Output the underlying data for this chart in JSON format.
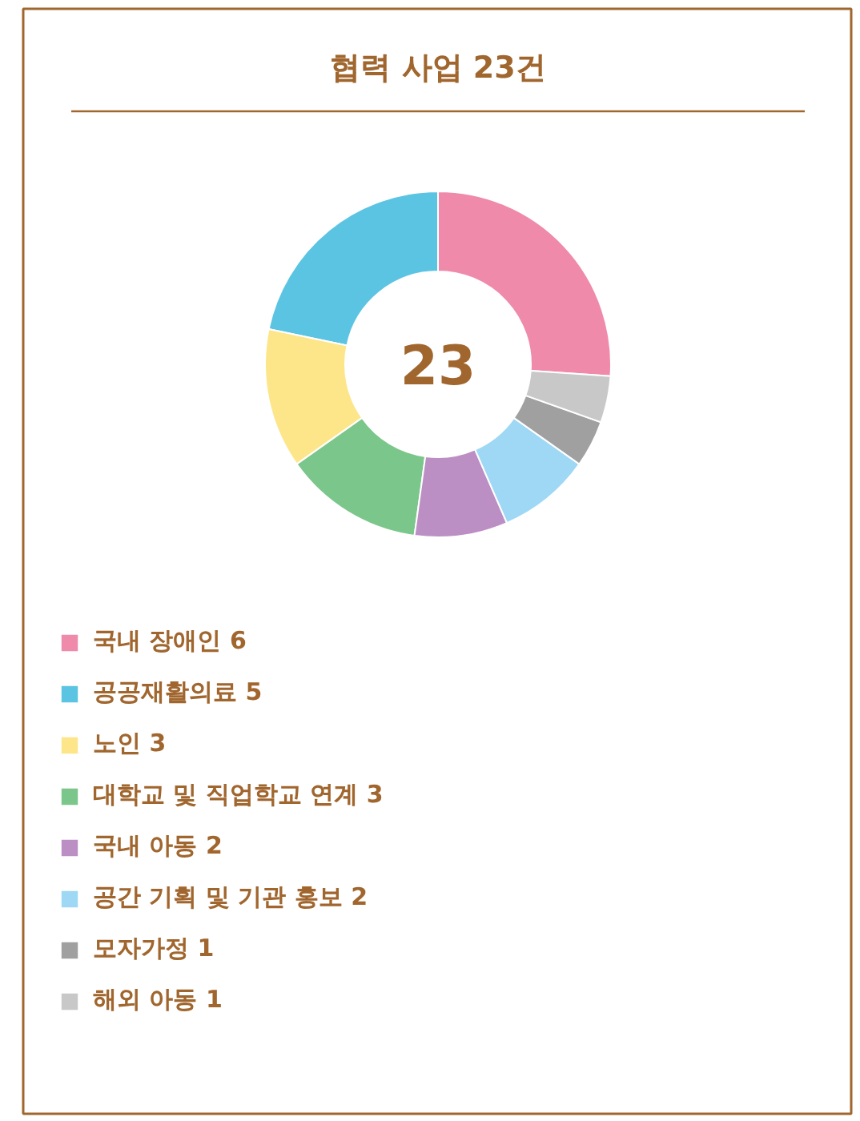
{
  "chart_data": {
    "type": "donut",
    "title": "협력 사업 23건",
    "categories": [
      "국내 장애인 6",
      "공공재활의료 5",
      "노인 3",
      "대학교 및 직업학교 연계 3",
      "국내 아동 2",
      "공간 기획 및 기관 홍보 2",
      "모자가정 1",
      "해외 아동 1"
    ],
    "values": [
      6,
      5,
      3,
      3,
      2,
      2,
      1,
      1
    ],
    "colors": [
      "#ef8aab",
      "#5bc4e2",
      "#fde68a",
      "#7bc68a",
      "#bc8fc4",
      "#9fd8f5",
      "#a0a0a0",
      "#c8c8c8"
    ],
    "annotations": [
      "23"
    ],
    "legend": "bottom left"
  }
}
